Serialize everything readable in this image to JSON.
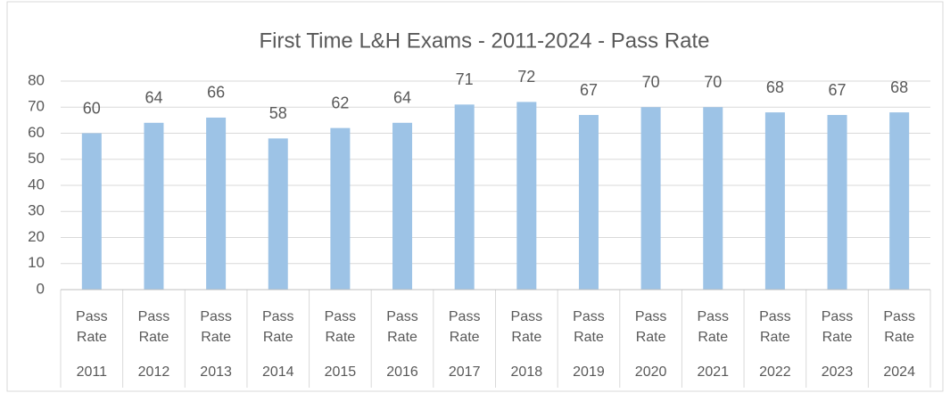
{
  "chart_data": {
    "type": "bar",
    "title": "First Time L&H Exams - 2011-2024 - Pass Rate",
    "categories": [
      "2011",
      "2012",
      "2013",
      "2014",
      "2015",
      "2016",
      "2017",
      "2018",
      "2019",
      "2020",
      "2021",
      "2022",
      "2023",
      "2024"
    ],
    "series": [
      {
        "name": "Pass Rate",
        "color": "#9dc3e6",
        "values": [
          60,
          64,
          66,
          58,
          62,
          64,
          71,
          72,
          67,
          70,
          70,
          68,
          67,
          68
        ]
      }
    ],
    "ylim": [
      0,
      80
    ],
    "yticks": [
      0,
      10,
      20,
      30,
      40,
      50,
      60,
      70,
      80
    ],
    "grid": true
  }
}
